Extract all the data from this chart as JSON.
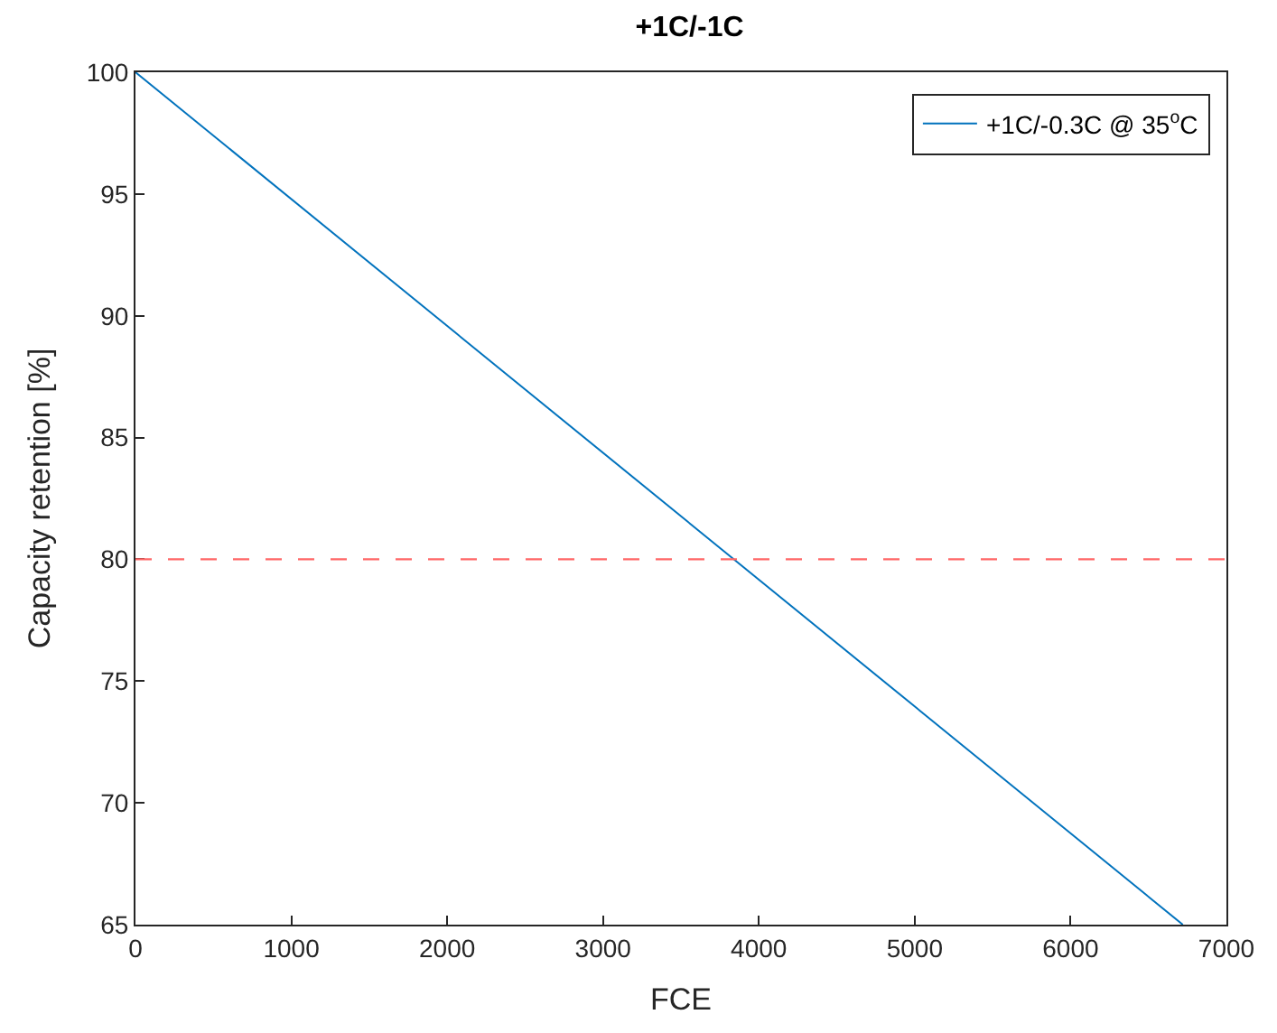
{
  "chart_data": {
    "type": "line",
    "title": "+1C/-1C",
    "xlabel": "FCE",
    "ylabel": "Capacity retention [%]",
    "series": [
      {
        "name": "+1C/-0.3C @ 35$^{o}$C",
        "color": "#0072bd",
        "x": [
          0,
          6720
        ],
        "values": [
          100,
          65
        ]
      }
    ],
    "xlim": [
      0,
      7000
    ],
    "xticks": [
      0,
      1000,
      2000,
      3000,
      4000,
      5000,
      6000,
      7000
    ],
    "ylim": [
      65,
      100
    ],
    "yticks": [
      65,
      70,
      75,
      80,
      85,
      90,
      95,
      100
    ],
    "ref_lines": [
      {
        "axis": "y",
        "value": 80,
        "label": null,
        "color": "#ff6666",
        "line_style": "dashed"
      }
    ],
    "legend": "top right",
    "marker": "none",
    "line_style": "solid"
  }
}
